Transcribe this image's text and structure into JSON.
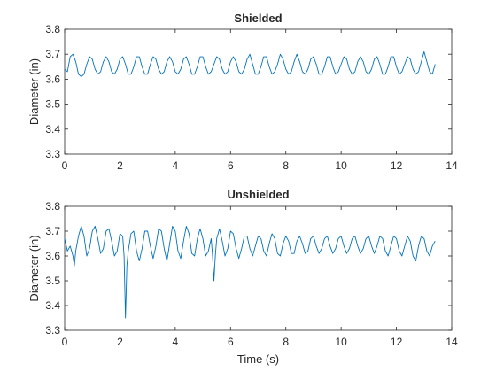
{
  "colors": {
    "series": "#0072BD",
    "axis": "#262626",
    "background": "#ffffff"
  },
  "chart_data": [
    {
      "type": "line",
      "title": "Shielded",
      "xlabel": "",
      "ylabel": "Diameter (in)",
      "xlim": [
        0,
        14
      ],
      "ylim": [
        3.3,
        3.8
      ],
      "xticks": [
        0,
        2,
        4,
        6,
        8,
        10,
        12,
        14
      ],
      "xtick_labels": [
        "0",
        "2",
        "4",
        "6",
        "8",
        "10",
        "12",
        "14"
      ],
      "yticks": [
        3.3,
        3.4,
        3.5,
        3.6,
        3.7,
        3.8
      ],
      "ytick_labels": [
        "3.3",
        "3.4",
        "3.5",
        "3.6",
        "3.7",
        "3.8"
      ],
      "grid": false,
      "series": [
        {
          "x": [
            0,
            0.1,
            0.2,
            0.3,
            0.4,
            0.5,
            0.6,
            0.7,
            0.8,
            0.9,
            1.0,
            1.1,
            1.2,
            1.3,
            1.4,
            1.5,
            1.6,
            1.7,
            1.8,
            1.9,
            2.0,
            2.1,
            2.2,
            2.3,
            2.4,
            2.5,
            2.6,
            2.7,
            2.8,
            2.9,
            3.0,
            3.1,
            3.2,
            3.3,
            3.4,
            3.5,
            3.6,
            3.7,
            3.8,
            3.9,
            4.0,
            4.1,
            4.2,
            4.3,
            4.4,
            4.5,
            4.6,
            4.7,
            4.8,
            4.9,
            5.0,
            5.1,
            5.2,
            5.3,
            5.4,
            5.5,
            5.6,
            5.7,
            5.8,
            5.9,
            6.0,
            6.1,
            6.2,
            6.3,
            6.4,
            6.5,
            6.6,
            6.7,
            6.8,
            6.9,
            7.0,
            7.1,
            7.2,
            7.3,
            7.4,
            7.5,
            7.6,
            7.7,
            7.8,
            7.9,
            8.0,
            8.1,
            8.2,
            8.3,
            8.4,
            8.5,
            8.6,
            8.7,
            8.8,
            8.9,
            9.0,
            9.1,
            9.2,
            9.3,
            9.4,
            9.5,
            9.6,
            9.7,
            9.8,
            9.9,
            10.0,
            10.1,
            10.2,
            10.3,
            10.4,
            10.5,
            10.6,
            10.7,
            10.8,
            10.9,
            11.0,
            11.1,
            11.2,
            11.3,
            11.4,
            11.5,
            11.6,
            11.7,
            11.8,
            11.9,
            12.0,
            12.1,
            12.2,
            12.3,
            12.4,
            12.5,
            12.6,
            12.7,
            12.8,
            12.9,
            13.0,
            13.1,
            13.2,
            13.3,
            13.4
          ],
          "y": [
            3.64,
            3.63,
            3.69,
            3.7,
            3.67,
            3.62,
            3.61,
            3.62,
            3.66,
            3.69,
            3.68,
            3.64,
            3.62,
            3.63,
            3.67,
            3.69,
            3.67,
            3.63,
            3.62,
            3.64,
            3.68,
            3.69,
            3.66,
            3.62,
            3.62,
            3.65,
            3.69,
            3.69,
            3.65,
            3.62,
            3.62,
            3.66,
            3.69,
            3.68,
            3.64,
            3.62,
            3.63,
            3.67,
            3.69,
            3.67,
            3.63,
            3.62,
            3.64,
            3.68,
            3.69,
            3.66,
            3.62,
            3.62,
            3.65,
            3.69,
            3.69,
            3.65,
            3.62,
            3.63,
            3.66,
            3.69,
            3.68,
            3.64,
            3.62,
            3.63,
            3.67,
            3.69,
            3.67,
            3.63,
            3.62,
            3.64,
            3.68,
            3.7,
            3.66,
            3.62,
            3.62,
            3.65,
            3.69,
            3.69,
            3.65,
            3.62,
            3.63,
            3.66,
            3.7,
            3.68,
            3.64,
            3.62,
            3.63,
            3.67,
            3.7,
            3.67,
            3.63,
            3.62,
            3.64,
            3.68,
            3.69,
            3.66,
            3.62,
            3.62,
            3.65,
            3.69,
            3.69,
            3.65,
            3.62,
            3.63,
            3.66,
            3.69,
            3.68,
            3.64,
            3.62,
            3.63,
            3.67,
            3.69,
            3.67,
            3.63,
            3.62,
            3.64,
            3.68,
            3.69,
            3.66,
            3.62,
            3.62,
            3.65,
            3.69,
            3.69,
            3.65,
            3.62,
            3.63,
            3.66,
            3.69,
            3.68,
            3.64,
            3.62,
            3.63,
            3.67,
            3.71,
            3.67,
            3.63,
            3.62,
            3.66
          ]
        }
      ]
    },
    {
      "type": "line",
      "title": "Unshielded",
      "xlabel": "Time (s)",
      "ylabel": "Diameter (in)",
      "xlim": [
        0,
        14
      ],
      "ylim": [
        3.3,
        3.8
      ],
      "xticks": [
        0,
        2,
        4,
        6,
        8,
        10,
        12,
        14
      ],
      "xtick_labels": [
        "0",
        "2",
        "4",
        "6",
        "8",
        "10",
        "12",
        "14"
      ],
      "yticks": [
        3.3,
        3.4,
        3.5,
        3.6,
        3.7,
        3.8
      ],
      "ytick_labels": [
        "3.3",
        "3.4",
        "3.5",
        "3.6",
        "3.7",
        "3.8"
      ],
      "grid": false,
      "series": [
        {
          "x": [
            0,
            0.1,
            0.2,
            0.3,
            0.35,
            0.4,
            0.5,
            0.6,
            0.7,
            0.8,
            0.9,
            1.0,
            1.1,
            1.2,
            1.3,
            1.4,
            1.5,
            1.6,
            1.7,
            1.8,
            1.9,
            2.0,
            2.1,
            2.15,
            2.2,
            2.25,
            2.3,
            2.4,
            2.5,
            2.6,
            2.7,
            2.8,
            2.9,
            3.0,
            3.1,
            3.2,
            3.3,
            3.4,
            3.5,
            3.6,
            3.7,
            3.8,
            3.9,
            4.0,
            4.1,
            4.2,
            4.3,
            4.4,
            4.5,
            4.6,
            4.7,
            4.8,
            4.9,
            5.0,
            5.1,
            5.2,
            5.3,
            5.35,
            5.4,
            5.45,
            5.5,
            5.6,
            5.7,
            5.8,
            5.9,
            6.0,
            6.1,
            6.2,
            6.3,
            6.4,
            6.5,
            6.6,
            6.7,
            6.8,
            6.9,
            7.0,
            7.1,
            7.2,
            7.3,
            7.4,
            7.5,
            7.6,
            7.7,
            7.8,
            7.9,
            8.0,
            8.1,
            8.2,
            8.3,
            8.4,
            8.5,
            8.6,
            8.7,
            8.8,
            8.9,
            9.0,
            9.1,
            9.2,
            9.3,
            9.4,
            9.5,
            9.6,
            9.7,
            9.8,
            9.9,
            10.0,
            10.1,
            10.2,
            10.3,
            10.4,
            10.5,
            10.6,
            10.7,
            10.8,
            10.9,
            11.0,
            11.1,
            11.2,
            11.3,
            11.4,
            11.5,
            11.6,
            11.7,
            11.8,
            11.9,
            12.0,
            12.1,
            12.2,
            12.3,
            12.4,
            12.5,
            12.6,
            12.7,
            12.8,
            12.9,
            13.0,
            13.1,
            13.2,
            13.3,
            13.4
          ],
          "y": [
            3.67,
            3.62,
            3.64,
            3.6,
            3.56,
            3.62,
            3.68,
            3.72,
            3.68,
            3.6,
            3.63,
            3.7,
            3.72,
            3.67,
            3.61,
            3.63,
            3.7,
            3.71,
            3.66,
            3.6,
            3.62,
            3.69,
            3.68,
            3.6,
            3.35,
            3.56,
            3.62,
            3.69,
            3.7,
            3.62,
            3.58,
            3.63,
            3.7,
            3.7,
            3.64,
            3.59,
            3.64,
            3.71,
            3.7,
            3.63,
            3.58,
            3.65,
            3.72,
            3.7,
            3.62,
            3.59,
            3.66,
            3.72,
            3.69,
            3.61,
            3.6,
            3.67,
            3.71,
            3.67,
            3.6,
            3.62,
            3.67,
            3.6,
            3.5,
            3.6,
            3.67,
            3.71,
            3.66,
            3.6,
            3.63,
            3.7,
            3.69,
            3.63,
            3.59,
            3.63,
            3.68,
            3.68,
            3.63,
            3.6,
            3.64,
            3.68,
            3.67,
            3.62,
            3.6,
            3.65,
            3.69,
            3.67,
            3.61,
            3.6,
            3.65,
            3.68,
            3.66,
            3.61,
            3.61,
            3.66,
            3.68,
            3.65,
            3.61,
            3.62,
            3.67,
            3.68,
            3.64,
            3.61,
            3.63,
            3.67,
            3.68,
            3.64,
            3.61,
            3.63,
            3.67,
            3.68,
            3.64,
            3.61,
            3.63,
            3.67,
            3.68,
            3.64,
            3.61,
            3.63,
            3.67,
            3.68,
            3.64,
            3.61,
            3.64,
            3.68,
            3.67,
            3.62,
            3.6,
            3.64,
            3.68,
            3.67,
            3.62,
            3.6,
            3.64,
            3.68,
            3.66,
            3.6,
            3.58,
            3.64,
            3.68,
            3.67,
            3.62,
            3.6,
            3.64,
            3.66
          ]
        }
      ]
    }
  ]
}
